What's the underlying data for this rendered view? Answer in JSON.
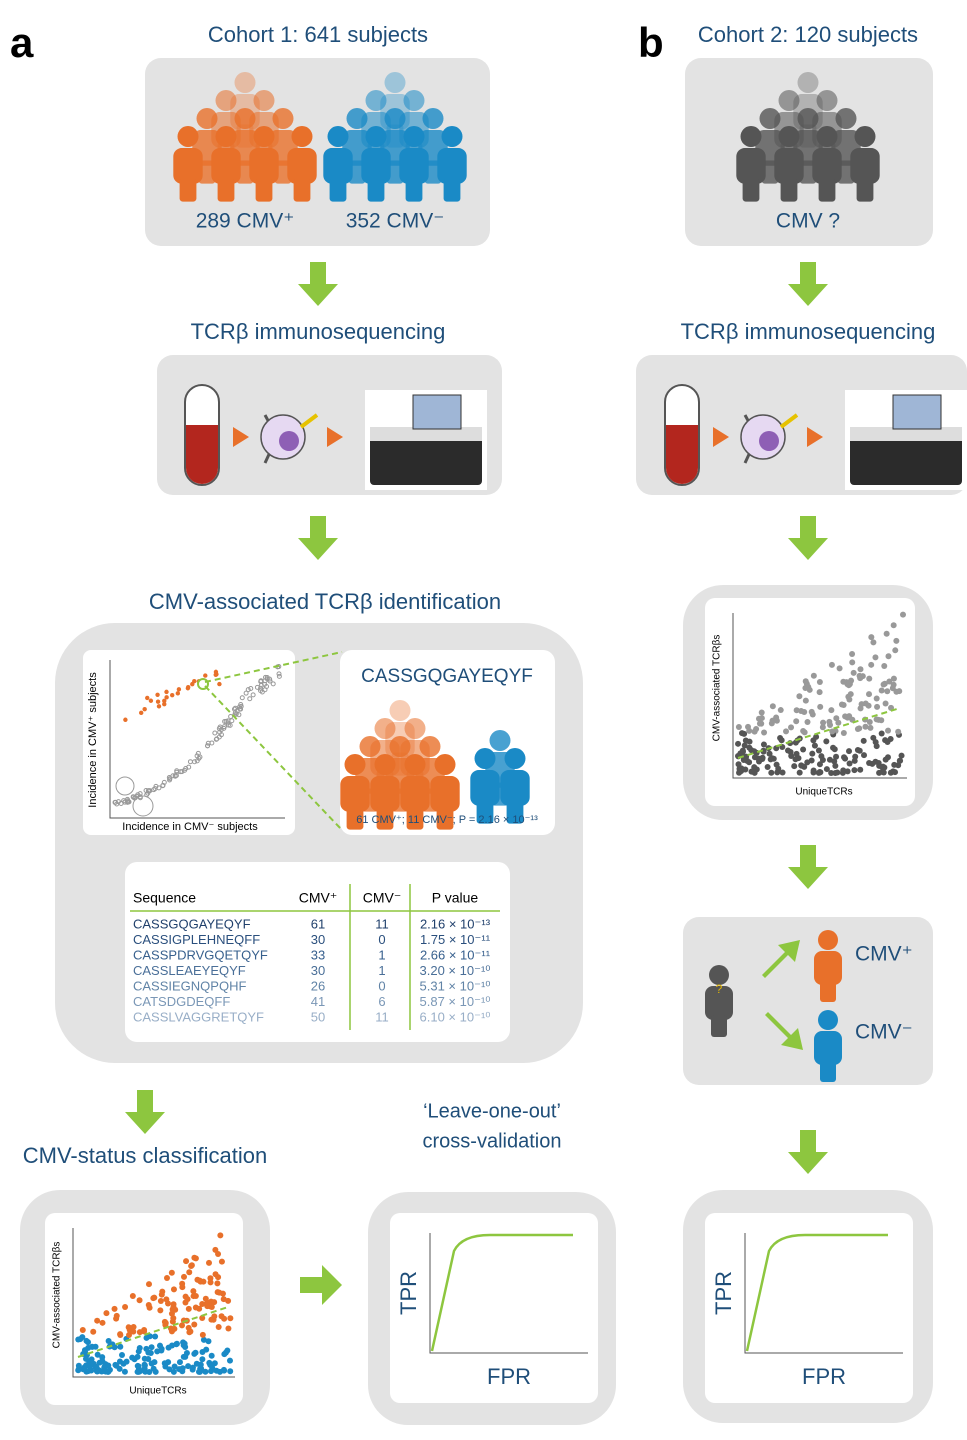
{
  "panel_a": {
    "label": "a",
    "cohort": {
      "title": "Cohort 1: 641 subjects",
      "positive": "289 CMV⁺",
      "negative": "352 CMV⁻"
    },
    "sequencing": "TCRβ immunosequencing",
    "identification": {
      "title": "CMV-associated TCRβ identification",
      "y_axis": "Incidence in CMV⁺ subjects",
      "x_axis": "Incidence in CMV⁻ subjects",
      "sequence": "CASSGQGAYEQYF",
      "stats": "61 CMV⁺; 11 CMV⁻; P = 2.16 × 10⁻¹³",
      "table": {
        "header": [
          "Sequence",
          "CMV⁺",
          "CMV⁻",
          "P value"
        ],
        "rows": [
          [
            "CASSGQGAYEQYF",
            61,
            11,
            "2.16 × 10⁻¹³"
          ],
          [
            "CASSIGPLEHNEQFF",
            30,
            0,
            "1.75 × 10⁻¹¹"
          ],
          [
            "CASSPDRVGQETQYF",
            33,
            1,
            "2.66 × 10⁻¹¹"
          ],
          [
            "CASSLEAEYEQYF",
            30,
            1,
            "3.20 × 10⁻¹⁰"
          ],
          [
            "CASSIEGNQPQHF",
            26,
            0,
            "5.31 × 10⁻¹⁰"
          ],
          [
            "CATSDGDEQFF",
            41,
            6,
            "5.87 × 10⁻¹⁰"
          ],
          [
            "CASSLVAGGRETQYF",
            50,
            11,
            "6.10 × 10⁻¹⁰"
          ]
        ]
      }
    },
    "classification": {
      "title": "CMV-status classification",
      "y_axis": "CMV-associated TCRβs",
      "x_axis": "UniqueTCRs"
    },
    "validation": {
      "title_lines": [
        "‘Leave-one-out’",
        "cross-validation"
      ],
      "y_axis": "TPR",
      "x_axis": "FPR"
    }
  },
  "panel_b": {
    "label": "b",
    "cohort": {
      "title": "Cohort 2: 120 subjects",
      "status": "CMV ?"
    },
    "sequencing": "TCRβ immunosequencing",
    "scatter": {
      "y_axis": "CMV-associated TCRβs",
      "x_axis": "UniqueTCRs"
    },
    "prediction": {
      "unknown_mark": "?",
      "positive": "CMV⁺",
      "negative": "CMV⁻"
    },
    "roc": {
      "y_axis": "TPR",
      "x_axis": "FPR"
    }
  }
}
